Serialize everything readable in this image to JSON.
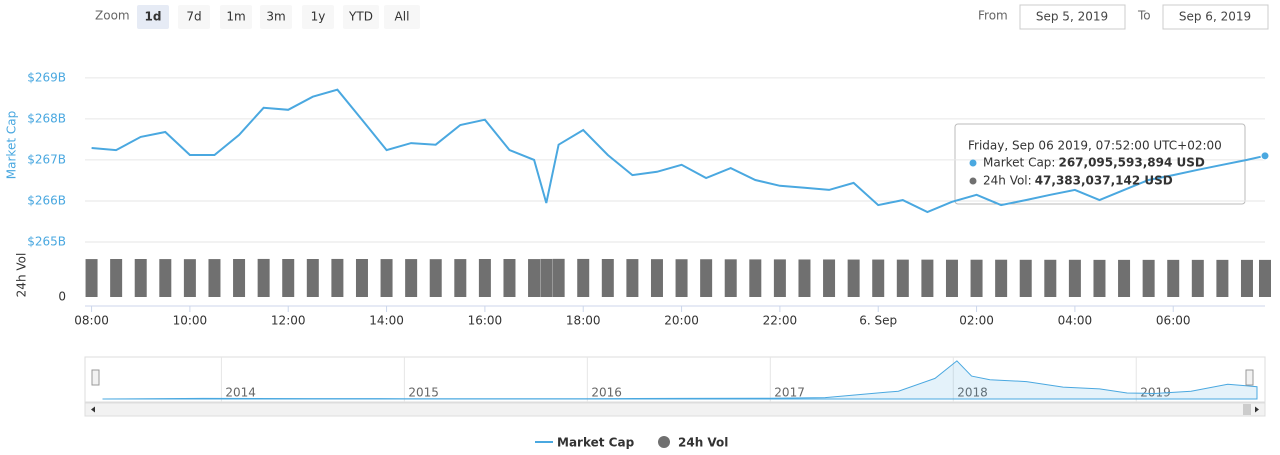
{
  "toolbar": {
    "zoom_label": "Zoom",
    "zoom_buttons": [
      "1d",
      "7d",
      "1m",
      "3m",
      "1y",
      "YTD",
      "All"
    ],
    "selected": "1d",
    "from_label": "From",
    "from": "Sep 5, 2019",
    "to_label": "To",
    "to": "Sep 6, 2019"
  },
  "chart_data": {
    "type": "stock",
    "x": [
      "08:00",
      "08:30",
      "09:00",
      "09:30",
      "10:00",
      "10:30",
      "11:00",
      "11:30",
      "12:00",
      "12:30",
      "13:00",
      "13:30",
      "14:00",
      "14:30",
      "15:00",
      "15:30",
      "16:00",
      "16:30",
      "17:00",
      "17:15",
      "17:30",
      "18:00",
      "18:30",
      "19:00",
      "19:30",
      "20:00",
      "20:30",
      "21:00",
      "21:30",
      "22:00",
      "22:30",
      "23:00",
      "23:30",
      "00:00",
      "00:30",
      "01:00",
      "01:30",
      "02:00",
      "02:30",
      "03:00",
      "03:30",
      "04:00",
      "04:30",
      "05:00",
      "05:30",
      "06:00",
      "06:30",
      "07:00",
      "07:30",
      "07:52"
    ],
    "xlim": [
      "07:52",
      "07:52"
    ],
    "xticks": [
      "08:00",
      "10:00",
      "12:00",
      "14:00",
      "16:00",
      "18:00",
      "20:00",
      "22:00",
      {
        "value": "00:00",
        "label": "6. Sep"
      },
      "02:00",
      "04:00",
      "06:00"
    ],
    "ylim": [
      265,
      269.8
    ],
    "yticks": [
      {
        "value": 265,
        "label": "$265B"
      },
      {
        "value": 266,
        "label": "$266B"
      },
      {
        "value": 267,
        "label": "$267B"
      },
      {
        "value": 268,
        "label": "$268B"
      },
      {
        "value": 269,
        "label": "$269B"
      }
    ],
    "ylabel": "Market Cap",
    "y2lim": [
      0,
      60000000000
    ],
    "y2ticks": [
      0
    ],
    "y2label": "24h Vol",
    "grid": true,
    "series": [
      {
        "name": "Market Cap",
        "color": "#4aa8e0",
        "values": [
          267.29,
          267.24,
          267.56,
          267.68,
          267.12,
          267.12,
          267.61,
          268.27,
          268.22,
          268.54,
          268.71,
          267.98,
          267.24,
          267.41,
          267.37,
          267.85,
          267.98,
          267.24,
          267.0,
          265.95,
          267.37,
          267.73,
          267.12,
          266.63,
          266.71,
          266.88,
          266.56,
          266.8,
          266.51,
          266.37,
          266.32,
          266.27,
          266.44,
          265.9,
          266.02,
          265.73,
          265.98,
          266.15,
          265.9,
          266.02,
          266.15,
          266.27,
          266.02,
          266.27,
          266.51,
          266.63,
          266.76,
          266.88,
          267.0,
          267.1
        ]
      },
      {
        "name": "24h Vol",
        "axis": "y2",
        "color": "#707070",
        "values": [
          48400000000,
          48500000000,
          48500000000,
          48400000000,
          48300000000,
          48400000000,
          48500000000,
          48600000000,
          48500000000,
          48500000000,
          48600000000,
          48500000000,
          48400000000,
          48400000000,
          48300000000,
          48400000000,
          48500000000,
          48500000000,
          48400000000,
          48600000000,
          48700000000,
          48600000000,
          48500000000,
          48400000000,
          48300000000,
          48200000000,
          48200000000,
          48100000000,
          48000000000,
          48000000000,
          47900000000,
          47900000000,
          47800000000,
          47800000000,
          47700000000,
          47700000000,
          47600000000,
          47600000000,
          47600000000,
          47500000000,
          47500000000,
          47500000000,
          47400000000,
          47400000000,
          47400000000,
          47400000000,
          47400000000,
          47400000000,
          47400000000,
          47383037142
        ]
      }
    ],
    "tooltip": {
      "title": "Friday, Sep 06 2019, 07:52:00 UTC+02:00",
      "rows": [
        {
          "label": "Market Cap:",
          "value": "267,095,593,894 USD"
        },
        {
          "label": "24h Vol:",
          "value": "47,383,037,142 USD"
        }
      ]
    },
    "navigator": {
      "x": [
        2013.35,
        2013.9,
        2014.5,
        2015.0,
        2015.5,
        2016.0,
        2016.5,
        2017.0,
        2017.3,
        2017.5,
        2017.7,
        2017.9,
        2018.02,
        2018.1,
        2018.2,
        2018.4,
        2018.6,
        2018.8,
        2018.95,
        2019.1,
        2019.3,
        2019.5,
        2019.6,
        2019.66
      ],
      "values": [
        1,
        12,
        8,
        6,
        4,
        7,
        12,
        17,
        30,
        100,
        170,
        450,
        830,
        500,
        420,
        380,
        260,
        220,
        130,
        120,
        170,
        320,
        290,
        267
      ],
      "xlim": [
        2013.32,
        2019.66
      ],
      "ylim": [
        0,
        850
      ],
      "xticks": [
        2014,
        2015,
        2016,
        2017,
        2018,
        2019
      ]
    }
  }
}
